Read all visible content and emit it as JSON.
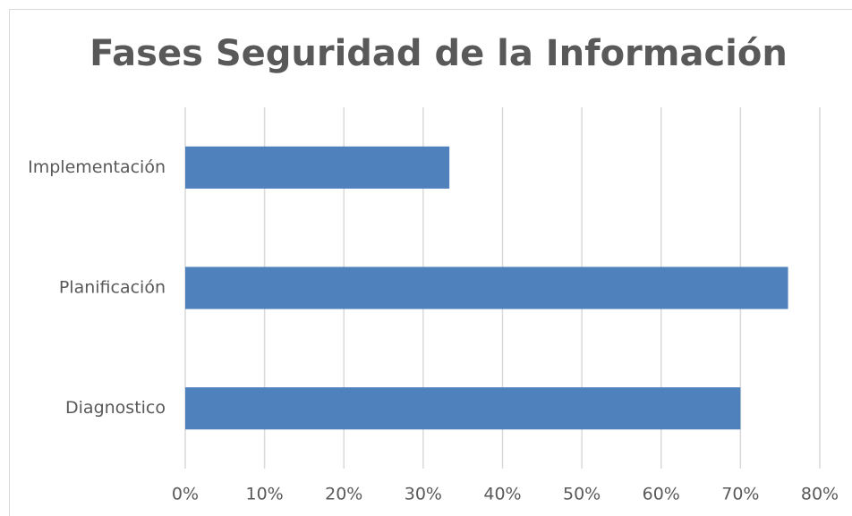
{
  "chart_data": {
    "type": "bar",
    "orientation": "horizontal",
    "title": "Fases Seguridad de la Información",
    "categories": [
      "Implementación",
      "Planificación",
      "Diagnostico"
    ],
    "values": [
      33.3,
      76,
      70
    ],
    "color": "#4f81bd",
    "xlim": [
      0,
      80
    ],
    "xticks": [
      {
        "value": 0,
        "label": "0%"
      },
      {
        "value": 10,
        "label": "10%"
      },
      {
        "value": 20,
        "label": "20%"
      },
      {
        "value": 30,
        "label": "30%"
      },
      {
        "value": 40,
        "label": "40%"
      },
      {
        "value": 50,
        "label": "50%"
      },
      {
        "value": 60,
        "label": "60%"
      },
      {
        "value": 70,
        "label": "70%"
      },
      {
        "value": 80,
        "label": "80%"
      }
    ],
    "grid": true
  }
}
